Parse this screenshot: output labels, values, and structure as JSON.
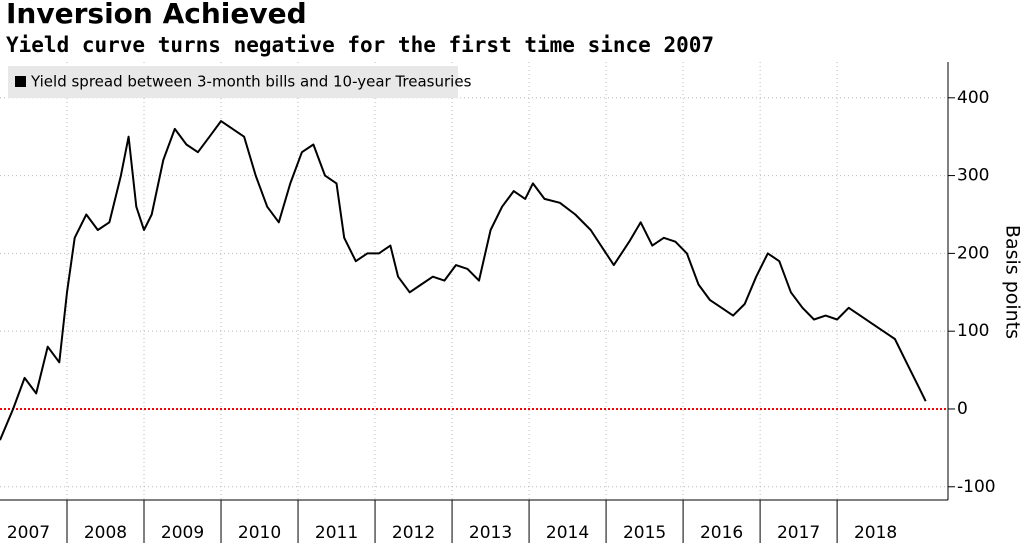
{
  "chart_data": {
    "type": "line",
    "title": "Inversion Achieved",
    "subtitle": "Yield curve turns negative for the first time since 2007",
    "y_label": "Basis points",
    "x": [
      2007.13,
      2007.3,
      2007.45,
      2007.6,
      2007.75,
      2007.9,
      2008.0,
      2008.1,
      2008.25,
      2008.4,
      2008.55,
      2008.7,
      2008.8,
      2008.9,
      2009.0,
      2009.1,
      2009.25,
      2009.4,
      2009.55,
      2009.7,
      2009.85,
      2010.0,
      2010.15,
      2010.3,
      2010.45,
      2010.6,
      2010.75,
      2010.9,
      2011.05,
      2011.2,
      2011.35,
      2011.5,
      2011.6,
      2011.75,
      2011.9,
      2012.05,
      2012.2,
      2012.3,
      2012.45,
      2012.6,
      2012.75,
      2012.9,
      2013.05,
      2013.2,
      2013.35,
      2013.5,
      2013.65,
      2013.8,
      2013.95,
      2014.05,
      2014.2,
      2014.4,
      2014.6,
      2014.8,
      2015.0,
      2015.1,
      2015.3,
      2015.45,
      2015.6,
      2015.75,
      2015.9,
      2016.05,
      2016.2,
      2016.35,
      2016.5,
      2016.65,
      2016.8,
      2016.95,
      2017.1,
      2017.25,
      2017.4,
      2017.55,
      2017.7,
      2017.85,
      2018.0,
      2018.15,
      2018.3,
      2018.45,
      2018.6,
      2018.75,
      2018.9,
      2019.05,
      2019.15
    ],
    "series": [
      {
        "name": "Yield spread between 3-month bills and 10-year Treasuries",
        "color": "#000000",
        "values": [
          -40,
          0,
          40,
          20,
          80,
          60,
          150,
          220,
          250,
          230,
          240,
          300,
          350,
          260,
          230,
          250,
          320,
          360,
          340,
          330,
          350,
          370,
          360,
          350,
          300,
          260,
          240,
          290,
          330,
          340,
          300,
          290,
          220,
          190,
          200,
          200,
          210,
          170,
          150,
          160,
          170,
          165,
          185,
          180,
          165,
          230,
          260,
          280,
          270,
          290,
          270,
          265,
          250,
          230,
          200,
          185,
          215,
          240,
          210,
          220,
          215,
          200,
          160,
          140,
          130,
          120,
          135,
          170,
          200,
          190,
          150,
          130,
          115,
          120,
          115,
          130,
          120,
          110,
          100,
          90,
          60,
          30,
          10
        ]
      }
    ],
    "xlim": [
      2007.13,
      2019.44
    ],
    "xticks": [
      {
        "value": 2007,
        "label": "2007"
      },
      {
        "value": 2008,
        "label": "2008"
      },
      {
        "value": 2009,
        "label": "2009"
      },
      {
        "value": 2010,
        "label": "2010"
      },
      {
        "value": 2011,
        "label": "2011"
      },
      {
        "value": 2012,
        "label": "2012"
      },
      {
        "value": 2013,
        "label": "2013"
      },
      {
        "value": 2014,
        "label": "2014"
      },
      {
        "value": 2015,
        "label": "2015"
      },
      {
        "value": 2016,
        "label": "2016"
      },
      {
        "value": 2017,
        "label": "2017"
      },
      {
        "value": 2018,
        "label": "2018"
      }
    ],
    "ylim": [
      -117,
      446
    ],
    "yticks": [
      -100,
      0,
      100,
      200,
      300,
      400
    ],
    "grid": true,
    "reference_line": {
      "value": 0,
      "color": "#ff0000"
    },
    "legend": "top-left"
  }
}
